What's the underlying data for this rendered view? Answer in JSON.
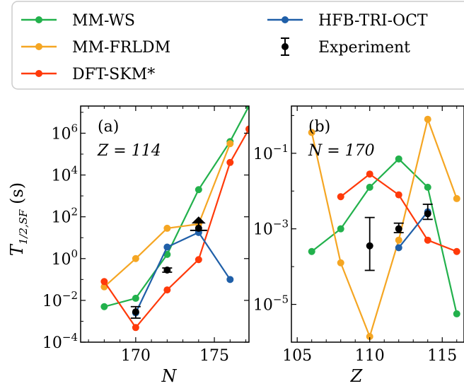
{
  "legend": {
    "entries": [
      {
        "label": "MM-WS",
        "color": "#22b14c",
        "kind": "line"
      },
      {
        "label": "MM-FRLDM",
        "color": "#f5a623",
        "kind": "line"
      },
      {
        "label": "DFT-SKM*",
        "color": "#ff3a0a",
        "kind": "line"
      },
      {
        "label": "HFB-TRI-OCT",
        "color": "#1f5fa8",
        "kind": "line"
      },
      {
        "label": "Experiment",
        "color": "#000000",
        "kind": "errorbar"
      }
    ],
    "placement": "top"
  },
  "chart_data": [
    {
      "type": "line",
      "panel_label": "(a)",
      "annotation": "Z = 114",
      "xlabel": "N",
      "ylabel": "T1/2,SF (s)",
      "xlim": [
        166.5,
        177.2
      ],
      "ylim_exponent": [
        -4,
        7.3
      ],
      "yscale": "log",
      "xticks": [
        170,
        175
      ],
      "yticks": [
        {
          "exp": -4,
          "label": "10−4"
        },
        {
          "exp": -2,
          "label": "10−2"
        },
        {
          "exp": 0,
          "label": "100"
        },
        {
          "exp": 2,
          "label": "102"
        },
        {
          "exp": 4,
          "label": "104"
        },
        {
          "exp": 6,
          "label": "106"
        }
      ],
      "series": [
        {
          "name": "MM-WS",
          "color": "#22b14c",
          "x": [
            168,
            170,
            172,
            174,
            176,
            177.2
          ],
          "log10_y": [
            -2.3,
            -1.9,
            0.2,
            3.3,
            5.6,
            7.3
          ]
        },
        {
          "name": "MM-FRLDM",
          "color": "#f5a623",
          "x": [
            168,
            170,
            172,
            174,
            176
          ],
          "log10_y": [
            -1.35,
            0.0,
            1.45,
            1.65,
            5.5
          ]
        },
        {
          "name": "DFT-SKM*",
          "color": "#ff3a0a",
          "x": [
            168,
            170,
            172,
            174,
            176,
            177.2
          ],
          "log10_y": [
            -1.1,
            -3.3,
            -1.5,
            -0.05,
            4.6,
            6.2
          ]
        },
        {
          "name": "HFB-TRI-OCT",
          "color": "#1f5fa8",
          "x": [
            170,
            172,
            174,
            176
          ],
          "log10_y": [
            -2.6,
            0.55,
            1.25,
            -1.0
          ]
        }
      ],
      "experiment": [
        {
          "x": 170,
          "log10_y": -2.55,
          "log10_lo": -2.85,
          "log10_hi": -2.3,
          "lower_limit": false
        },
        {
          "x": 172,
          "log10_y": -0.55,
          "log10_lo": -0.65,
          "log10_hi": -0.45,
          "lower_limit": false
        },
        {
          "x": 174,
          "log10_y": 1.35,
          "log10_lo": 1.45,
          "log10_hi": 1.95,
          "lower_limit": true
        }
      ]
    },
    {
      "type": "line",
      "panel_label": "(b)",
      "annotation": "N = 170",
      "xlabel": "Z",
      "ylabel": "",
      "xlim": [
        104.6,
        116.5
      ],
      "ylim_exponent": [
        -6.0,
        0.25
      ],
      "yscale": "log",
      "xticks": [
        105,
        110,
        115
      ],
      "yticks": [
        {
          "exp": -5,
          "label": "10−5"
        },
        {
          "exp": -3,
          "label": "10−3"
        },
        {
          "exp": -1,
          "label": "10−1"
        }
      ],
      "series": [
        {
          "name": "MM-WS",
          "color": "#22b14c",
          "x": [
            106,
            108,
            110,
            112,
            114,
            116
          ],
          "log10_y": [
            -3.6,
            -3.0,
            -1.9,
            -1.15,
            -1.9,
            -5.25
          ]
        },
        {
          "name": "MM-FRLDM",
          "color": "#f5a623",
          "x": [
            106,
            108,
            110,
            112,
            114,
            116
          ],
          "log10_y": [
            -0.45,
            -3.9,
            -5.85,
            -3.3,
            -0.1,
            -2.2
          ]
        },
        {
          "name": "DFT-SKM*",
          "color": "#ff3a0a",
          "x": [
            108,
            110,
            112,
            114,
            116
          ],
          "log10_y": [
            -2.15,
            -1.55,
            -2.1,
            -3.3,
            -3.6
          ]
        },
        {
          "name": "HFB-TRI-OCT",
          "color": "#1f5fa8",
          "x": [
            112,
            114
          ],
          "log10_y": [
            -3.5,
            -2.55
          ]
        }
      ],
      "experiment": [
        {
          "x": 110,
          "log10_y": -3.45,
          "log10_lo": -4.1,
          "log10_hi": -2.7,
          "lower_limit": false
        },
        {
          "x": 112,
          "log10_y": -3.0,
          "log10_lo": -3.1,
          "log10_hi": -2.85,
          "lower_limit": false
        },
        {
          "x": 114,
          "log10_y": -2.6,
          "log10_lo": -2.75,
          "log10_hi": -2.35,
          "lower_limit": false
        }
      ]
    }
  ]
}
